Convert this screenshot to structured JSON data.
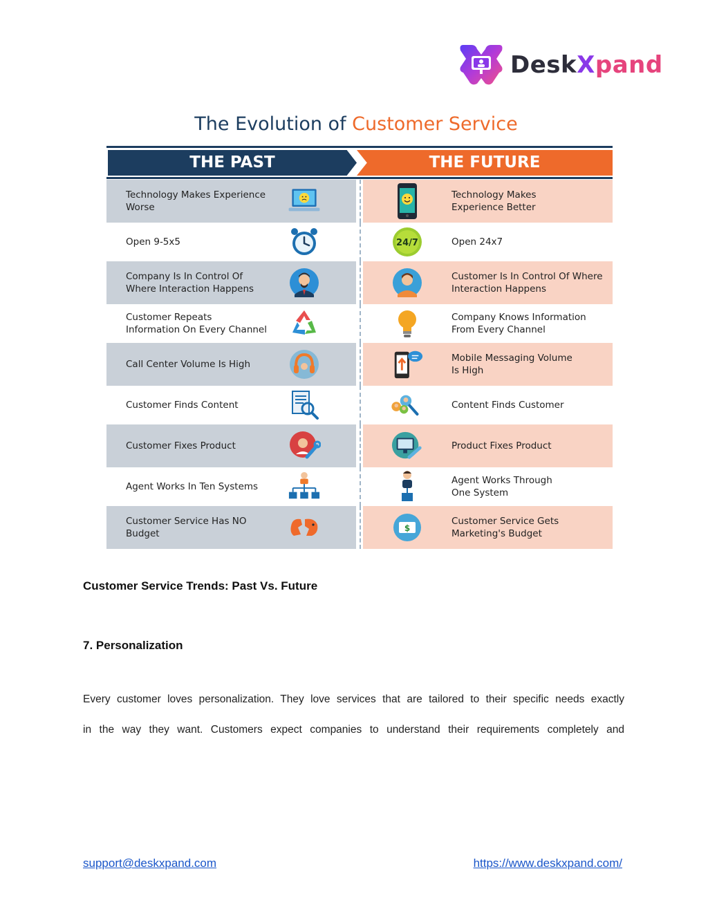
{
  "logo": {
    "word_desk": "Desk",
    "word_x": "X",
    "word_pand": "pand"
  },
  "infographic": {
    "title_part1": "The Evolution of ",
    "title_part2": "Customer Service",
    "past_header": "THE PAST",
    "future_header": "THE FUTURE",
    "rows": [
      {
        "past": "Technology Makes Experience\nWorse",
        "past_icon": "sad-laptop-icon",
        "future": "Technology Makes\n Experience Better",
        "future_icon": "happy-phone-icon"
      },
      {
        "past": "Open 9-5x5",
        "past_icon": "alarm-clock-icon",
        "future": "Open 24x7",
        "future_icon": "badge-24-7-icon",
        "future_badge": "24/7"
      },
      {
        "past": "Company Is In Control Of\nWhere Interaction Happens",
        "past_icon": "businessman-icon",
        "future": "Customer  Is In Control Of Where\nInteraction Happens",
        "future_icon": "customer-avatar-icon"
      },
      {
        "past": "Customer Repeats\nInformation On Every Channel",
        "past_icon": "recycle-icon",
        "future": "Company Knows Information\nFrom Every Channel",
        "future_icon": "lightbulb-icon"
      },
      {
        "past": "Call Center Volume Is High",
        "past_icon": "headset-icon",
        "future": "Mobile Messaging Volume\nIs High",
        "future_icon": "mobile-chat-icon"
      },
      {
        "past": "Customer Finds Content",
        "past_icon": "document-search-icon",
        "future": "Content Finds Customer",
        "future_icon": "people-search-icon"
      },
      {
        "past": "Customer Fixes Product",
        "past_icon": "person-wrench-icon",
        "future": "Product Fixes Product",
        "future_icon": "monitor-wrench-icon"
      },
      {
        "past": "Agent Works In Ten Systems",
        "past_icon": "hierarchy-icon",
        "future": "Agent Works Through\nOne System",
        "future_icon": "single-agent-icon"
      },
      {
        "past": "Customer Service Has NO\nBudget",
        "past_icon": "broken-piggy-icon",
        "future": "Customer Service Gets\nMarketing's Budget",
        "future_icon": "money-icon"
      }
    ]
  },
  "caption": "Customer Service Trends: Past Vs. Future",
  "section_heading": "7. Personalization",
  "paragraph_lines": [
    "Every customer loves personalization. They love services that are tailored to their specific needs exactly",
    "in the way they want. Customers expect companies to understand their requirements completely and"
  ],
  "footer": {
    "email": "support@deskxpand.com",
    "website": "https://www.deskxpand.com/"
  },
  "colors": {
    "navy": "#1c3d5f",
    "orange": "#ee6a2b",
    "past_shade": "#c9d0d8",
    "future_shade": "#f9d3c4",
    "link": "#1a56c9"
  }
}
